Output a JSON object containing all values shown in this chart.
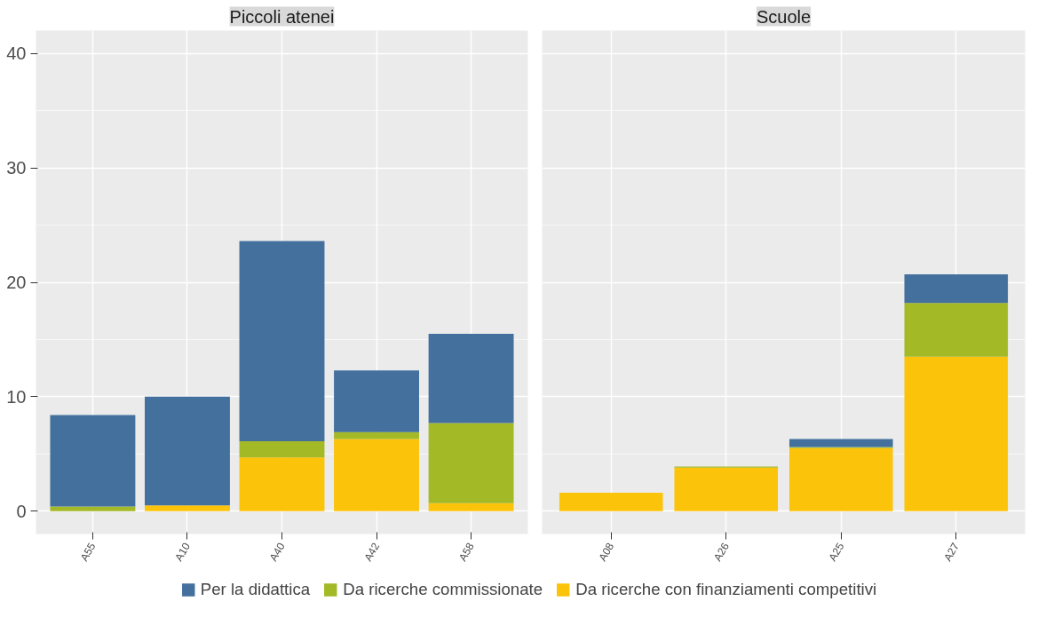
{
  "chart_data": [
    {
      "type": "bar",
      "title": "Piccoli atenei",
      "stacked": true,
      "categories": [
        "A55",
        "A10",
        "A40",
        "A42",
        "A58"
      ],
      "series": [
        {
          "name": "Da ricerche con finanziamenti competitivi",
          "color": "#fcc30b",
          "values": [
            0,
            0.5,
            4.7,
            6.3,
            0.7
          ]
        },
        {
          "name": "Da ricerche commissionate",
          "color": "#a4b926",
          "values": [
            0.4,
            0,
            1.4,
            0.6,
            7.0
          ]
        },
        {
          "name": "Per la didattica",
          "color": "#43709d",
          "values": [
            8.0,
            9.5,
            17.5,
            5.4,
            7.8
          ]
        }
      ],
      "ylim": [
        -2,
        42
      ],
      "yticks": [
        0,
        10,
        20,
        30,
        40
      ],
      "grid": true,
      "legend": "bottom"
    },
    {
      "type": "bar",
      "title": "Scuole",
      "stacked": true,
      "categories": [
        "A08",
        "A26",
        "A25",
        "A27"
      ],
      "series": [
        {
          "color": "#fcc30b",
          "values": [
            1.6,
            3.8,
            5.5,
            13.5
          ]
        },
        {
          "color": "#a4b926",
          "values": [
            0,
            0.1,
            0.1,
            4.7
          ]
        },
        {
          "color": "#43709d",
          "values": [
            0,
            0,
            0.7,
            2.5
          ]
        }
      ],
      "ylim": [
        -2,
        42
      ],
      "yticks": [
        0,
        10,
        20,
        30,
        40
      ],
      "grid": true,
      "tick_labels": "x"
    }
  ]
}
